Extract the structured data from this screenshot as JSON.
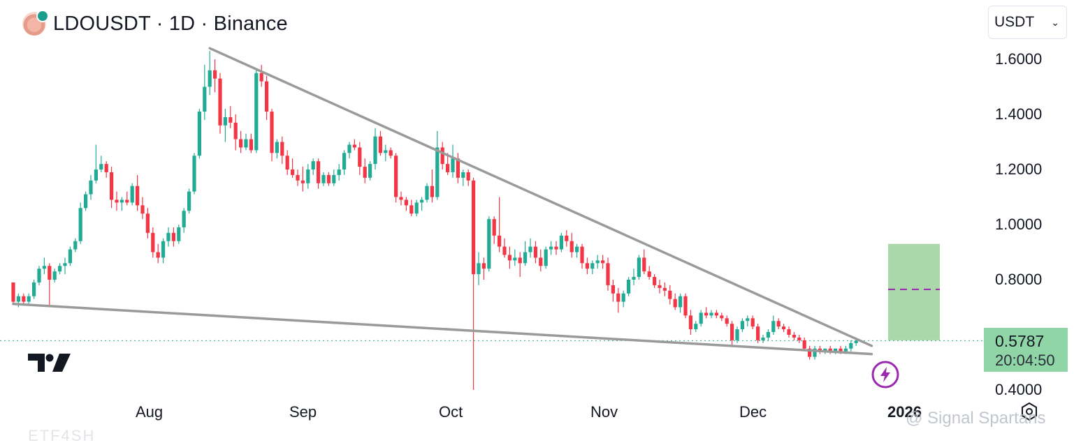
{
  "header": {
    "title": "LDOUSDT · 1D · Binance",
    "symbol_icon": "lido-coin-icon"
  },
  "currency_select": {
    "value": "USDT",
    "icon": "chevron-down-icon"
  },
  "price_badge": {
    "price": "0.5787",
    "countdown": "20:04:50"
  },
  "watermark": "@ Signal Spartans",
  "footer_text": "ETF4SH",
  "colors": {
    "up": "#22ab94",
    "down": "#f23645",
    "trendline": "#9a9a9a",
    "target_box": "#a5d6a7",
    "target_line": "#9c27b0",
    "bolt": "#9c27b0"
  },
  "chart_data": {
    "type": "candlestick",
    "title": "LDOUSDT · 1D · Binance",
    "y_ticks": [
      "1.6000",
      "1.4000",
      "1.2000",
      "1.0000",
      "0.8000",
      "0.4000"
    ],
    "x_ticks": [
      "Aug",
      "Sep",
      "Oct",
      "Nov",
      "Dec",
      "2026"
    ],
    "ylim": [
      0.4,
      1.64
    ],
    "last_price": 0.5787,
    "ohlc_series": [
      [
        0.79,
        0.76,
        0.71,
        0.72
      ],
      [
        0.72,
        0.75,
        0.7,
        0.74
      ],
      [
        0.74,
        0.75,
        0.71,
        0.72
      ],
      [
        0.72,
        0.75,
        0.71,
        0.74
      ],
      [
        0.74,
        0.8,
        0.73,
        0.79
      ],
      [
        0.79,
        0.85,
        0.78,
        0.84
      ],
      [
        0.84,
        0.88,
        0.82,
        0.85
      ],
      [
        0.85,
        0.86,
        0.7,
        0.8
      ],
      [
        0.8,
        0.84,
        0.79,
        0.83
      ],
      [
        0.83,
        0.86,
        0.82,
        0.85
      ],
      [
        0.85,
        0.88,
        0.82,
        0.86
      ],
      [
        0.86,
        0.92,
        0.85,
        0.91
      ],
      [
        0.91,
        0.95,
        0.9,
        0.94
      ],
      [
        0.94,
        1.08,
        0.93,
        1.06
      ],
      [
        1.06,
        1.12,
        1.05,
        1.11
      ],
      [
        1.11,
        1.18,
        1.09,
        1.16
      ],
      [
        1.16,
        1.29,
        1.15,
        1.2
      ],
      [
        1.2,
        1.25,
        1.19,
        1.22
      ],
      [
        1.22,
        1.23,
        1.17,
        1.19
      ],
      [
        1.19,
        1.21,
        1.06,
        1.09
      ],
      [
        1.09,
        1.12,
        1.05,
        1.08
      ],
      [
        1.08,
        1.1,
        1.05,
        1.09
      ],
      [
        1.09,
        1.12,
        1.07,
        1.08
      ],
      [
        1.08,
        1.15,
        1.07,
        1.14
      ],
      [
        1.14,
        1.18,
        1.05,
        1.07
      ],
      [
        1.07,
        1.1,
        1.02,
        1.04
      ],
      [
        1.04,
        1.06,
        0.95,
        0.97
      ],
      [
        0.97,
        0.99,
        0.88,
        0.9
      ],
      [
        0.9,
        0.93,
        0.86,
        0.88
      ],
      [
        0.88,
        0.95,
        0.86,
        0.94
      ],
      [
        0.94,
        0.99,
        0.92,
        0.97
      ],
      [
        0.97,
        0.99,
        0.92,
        0.94
      ],
      [
        0.94,
        1.0,
        0.93,
        0.99
      ],
      [
        0.99,
        1.06,
        0.97,
        1.05
      ],
      [
        1.05,
        1.13,
        1.04,
        1.12
      ],
      [
        1.12,
        1.26,
        1.11,
        1.25
      ],
      [
        1.25,
        1.42,
        1.24,
        1.41
      ],
      [
        1.41,
        1.58,
        1.38,
        1.5
      ],
      [
        1.5,
        1.63,
        1.47,
        1.56
      ],
      [
        1.56,
        1.6,
        1.48,
        1.53
      ],
      [
        1.53,
        1.55,
        1.33,
        1.36
      ],
      [
        1.36,
        1.42,
        1.3,
        1.39
      ],
      [
        1.39,
        1.43,
        1.35,
        1.37
      ],
      [
        1.37,
        1.4,
        1.27,
        1.31
      ],
      [
        1.31,
        1.34,
        1.26,
        1.28
      ],
      [
        1.28,
        1.33,
        1.27,
        1.31
      ],
      [
        1.31,
        1.33,
        1.26,
        1.27
      ],
      [
        1.27,
        1.56,
        1.26,
        1.55
      ],
      [
        1.55,
        1.58,
        1.5,
        1.52
      ],
      [
        1.52,
        1.54,
        1.38,
        1.41
      ],
      [
        1.41,
        1.42,
        1.23,
        1.26
      ],
      [
        1.26,
        1.31,
        1.24,
        1.3
      ],
      [
        1.3,
        1.32,
        1.22,
        1.25
      ],
      [
        1.25,
        1.27,
        1.18,
        1.2
      ],
      [
        1.2,
        1.24,
        1.17,
        1.18
      ],
      [
        1.18,
        1.2,
        1.14,
        1.16
      ],
      [
        1.16,
        1.21,
        1.12,
        1.15
      ],
      [
        1.15,
        1.22,
        1.13,
        1.2
      ],
      [
        1.2,
        1.24,
        1.18,
        1.23
      ],
      [
        1.23,
        1.24,
        1.13,
        1.15
      ],
      [
        1.15,
        1.19,
        1.14,
        1.18
      ],
      [
        1.18,
        1.19,
        1.14,
        1.15
      ],
      [
        1.15,
        1.2,
        1.14,
        1.18
      ],
      [
        1.18,
        1.22,
        1.16,
        1.2
      ],
      [
        1.2,
        1.27,
        1.18,
        1.26
      ],
      [
        1.26,
        1.3,
        1.24,
        1.29
      ],
      [
        1.29,
        1.31,
        1.27,
        1.28
      ],
      [
        1.28,
        1.3,
        1.18,
        1.21
      ],
      [
        1.21,
        1.24,
        1.15,
        1.17
      ],
      [
        1.17,
        1.23,
        1.16,
        1.22
      ],
      [
        1.22,
        1.35,
        1.2,
        1.32
      ],
      [
        1.32,
        1.34,
        1.25,
        1.26
      ],
      [
        1.26,
        1.29,
        1.23,
        1.27
      ],
      [
        1.27,
        1.28,
        1.24,
        1.25
      ],
      [
        1.25,
        1.26,
        1.08,
        1.1
      ],
      [
        1.1,
        1.12,
        1.07,
        1.09
      ],
      [
        1.09,
        1.1,
        1.05,
        1.07
      ],
      [
        1.07,
        1.09,
        1.03,
        1.04
      ],
      [
        1.04,
        1.09,
        1.03,
        1.08
      ],
      [
        1.08,
        1.1,
        1.05,
        1.09
      ],
      [
        1.09,
        1.15,
        1.08,
        1.14
      ],
      [
        1.14,
        1.2,
        1.08,
        1.1
      ],
      [
        1.1,
        1.34,
        1.09,
        1.28
      ],
      [
        1.28,
        1.3,
        1.2,
        1.22
      ],
      [
        1.22,
        1.26,
        1.18,
        1.19
      ],
      [
        1.19,
        1.29,
        1.17,
        1.24
      ],
      [
        1.24,
        1.26,
        1.15,
        1.17
      ],
      [
        1.17,
        1.2,
        1.14,
        1.19
      ],
      [
        1.19,
        1.2,
        1.14,
        1.16
      ],
      [
        1.16,
        1.17,
        0.4,
        0.82
      ],
      [
        0.82,
        0.9,
        0.78,
        0.86
      ],
      [
        0.86,
        0.88,
        0.8,
        0.84
      ],
      [
        0.84,
        1.03,
        0.83,
        1.02
      ],
      [
        1.02,
        1.03,
        0.93,
        0.96
      ],
      [
        0.96,
        1.1,
        0.9,
        0.92
      ],
      [
        0.92,
        0.95,
        0.88,
        0.89
      ],
      [
        0.89,
        0.92,
        0.84,
        0.87
      ],
      [
        0.87,
        0.91,
        0.85,
        0.88
      ],
      [
        0.88,
        0.9,
        0.81,
        0.86
      ],
      [
        0.86,
        0.94,
        0.85,
        0.9
      ],
      [
        0.9,
        0.95,
        0.88,
        0.92
      ],
      [
        0.92,
        0.94,
        0.86,
        0.88
      ],
      [
        0.88,
        0.91,
        0.83,
        0.85
      ],
      [
        0.85,
        0.92,
        0.84,
        0.91
      ],
      [
        0.91,
        0.94,
        0.89,
        0.92
      ],
      [
        0.92,
        0.94,
        0.89,
        0.91
      ],
      [
        0.91,
        0.97,
        0.9,
        0.96
      ],
      [
        0.96,
        0.98,
        0.92,
        0.94
      ],
      [
        0.94,
        0.97,
        0.88,
        0.9
      ],
      [
        0.9,
        0.93,
        0.88,
        0.92
      ],
      [
        0.92,
        0.93,
        0.84,
        0.86
      ],
      [
        0.86,
        0.88,
        0.82,
        0.84
      ],
      [
        0.84,
        0.87,
        0.82,
        0.86
      ],
      [
        0.86,
        0.89,
        0.84,
        0.87
      ],
      [
        0.87,
        0.89,
        0.84,
        0.86
      ],
      [
        0.86,
        0.88,
        0.76,
        0.78
      ],
      [
        0.78,
        0.8,
        0.72,
        0.75
      ],
      [
        0.75,
        0.77,
        0.68,
        0.72
      ],
      [
        0.72,
        0.76,
        0.7,
        0.75
      ],
      [
        0.75,
        0.81,
        0.74,
        0.8
      ],
      [
        0.8,
        0.84,
        0.78,
        0.81
      ],
      [
        0.81,
        0.89,
        0.8,
        0.88
      ],
      [
        0.88,
        0.91,
        0.82,
        0.83
      ],
      [
        0.83,
        0.85,
        0.8,
        0.81
      ],
      [
        0.81,
        0.82,
        0.77,
        0.78
      ],
      [
        0.78,
        0.8,
        0.75,
        0.77
      ],
      [
        0.77,
        0.79,
        0.74,
        0.76
      ],
      [
        0.76,
        0.78,
        0.71,
        0.73
      ],
      [
        0.73,
        0.75,
        0.69,
        0.7
      ],
      [
        0.7,
        0.75,
        0.68,
        0.74
      ],
      [
        0.74,
        0.75,
        0.66,
        0.67
      ],
      [
        0.67,
        0.69,
        0.6,
        0.62
      ],
      [
        0.62,
        0.65,
        0.61,
        0.64
      ],
      [
        0.64,
        0.69,
        0.63,
        0.68
      ],
      [
        0.68,
        0.7,
        0.66,
        0.67
      ],
      [
        0.67,
        0.69,
        0.66,
        0.68
      ],
      [
        0.68,
        0.69,
        0.66,
        0.67
      ],
      [
        0.67,
        0.68,
        0.65,
        0.66
      ],
      [
        0.66,
        0.67,
        0.63,
        0.64
      ],
      [
        0.64,
        0.65,
        0.56,
        0.58
      ],
      [
        0.58,
        0.63,
        0.57,
        0.62
      ],
      [
        0.62,
        0.66,
        0.61,
        0.65
      ],
      [
        0.65,
        0.67,
        0.63,
        0.66
      ],
      [
        0.66,
        0.67,
        0.62,
        0.63
      ],
      [
        0.63,
        0.64,
        0.57,
        0.58
      ],
      [
        0.58,
        0.6,
        0.57,
        0.59
      ],
      [
        0.59,
        0.62,
        0.58,
        0.61
      ],
      [
        0.61,
        0.67,
        0.6,
        0.65
      ],
      [
        0.65,
        0.66,
        0.62,
        0.63
      ],
      [
        0.63,
        0.64,
        0.61,
        0.62
      ],
      [
        0.62,
        0.63,
        0.59,
        0.6
      ],
      [
        0.6,
        0.61,
        0.58,
        0.59
      ],
      [
        0.59,
        0.6,
        0.57,
        0.58
      ],
      [
        0.58,
        0.59,
        0.54,
        0.55
      ],
      [
        0.55,
        0.56,
        0.51,
        0.52
      ],
      [
        0.52,
        0.56,
        0.51,
        0.55
      ],
      [
        0.55,
        0.56,
        0.53,
        0.54
      ],
      [
        0.54,
        0.55,
        0.53,
        0.55
      ],
      [
        0.55,
        0.56,
        0.53,
        0.54
      ],
      [
        0.54,
        0.55,
        0.53,
        0.55
      ],
      [
        0.55,
        0.56,
        0.53,
        0.54
      ],
      [
        0.54,
        0.56,
        0.53,
        0.55
      ],
      [
        0.55,
        0.58,
        0.54,
        0.57
      ],
      [
        0.57,
        0.59,
        0.56,
        0.5787
      ]
    ],
    "trendlines": [
      {
        "name": "upper",
        "x": [
          38,
          166
        ],
        "y": [
          1.64,
          0.56
        ]
      },
      {
        "name": "lower",
        "x": [
          0,
          166
        ],
        "y": [
          0.712,
          0.53
        ]
      }
    ],
    "target_zone": {
      "y_low": 0.58,
      "y_high": 0.93,
      "target": 0.765
    }
  }
}
